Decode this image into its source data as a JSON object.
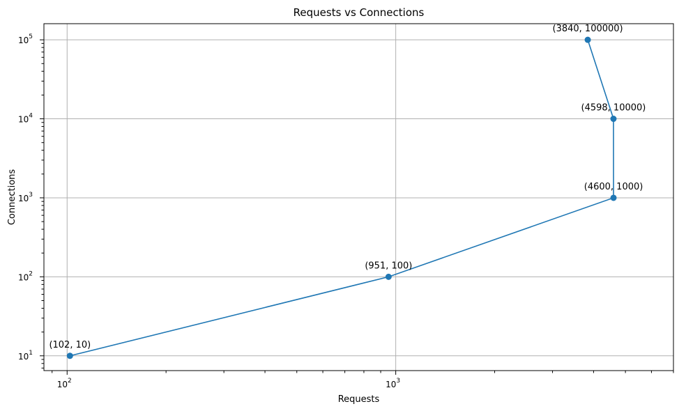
{
  "chart_data": {
    "type": "line",
    "title": "Requests vs Connections",
    "xlabel": "Requests",
    "ylabel": "Connections",
    "xscale": "log",
    "yscale": "log",
    "xlim": [
      85,
      7000
    ],
    "ylim": [
      6.5,
      160000
    ],
    "grid": true,
    "marker": "circle",
    "color": "#1f77b4",
    "x_ticks": [
      {
        "value": 100,
        "base": "10",
        "exp": "2"
      },
      {
        "value": 1000,
        "base": "10",
        "exp": "3"
      }
    ],
    "y_ticks": [
      {
        "value": 10,
        "base": "10",
        "exp": "1"
      },
      {
        "value": 100,
        "base": "10",
        "exp": "2"
      },
      {
        "value": 1000,
        "base": "10",
        "exp": "3"
      },
      {
        "value": 10000,
        "base": "10",
        "exp": "4"
      },
      {
        "value": 100000,
        "base": "10",
        "exp": "5"
      }
    ],
    "series": [
      {
        "points": [
          {
            "x": 102,
            "y": 10,
            "label": "(102, 10)"
          },
          {
            "x": 951,
            "y": 100,
            "label": "(951, 100)"
          },
          {
            "x": 4600,
            "y": 1000,
            "label": "(4600, 1000)"
          },
          {
            "x": 4598,
            "y": 10000,
            "label": "(4598, 10000)"
          },
          {
            "x": 3840,
            "y": 100000,
            "label": "(3840, 100000)"
          }
        ]
      }
    ]
  }
}
